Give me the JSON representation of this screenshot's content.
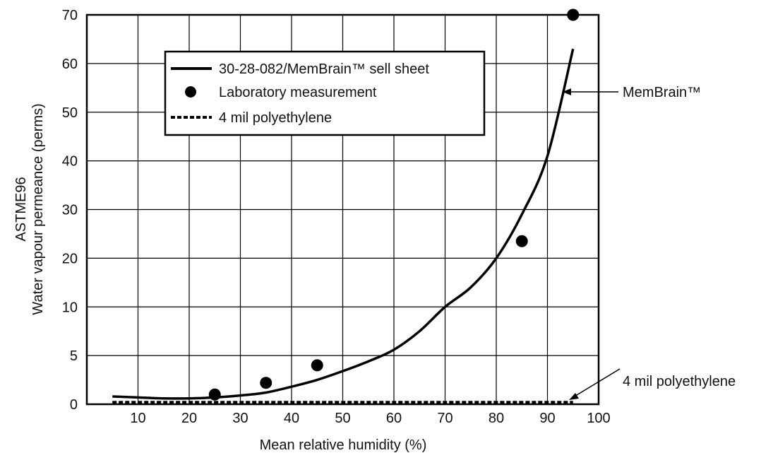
{
  "chart_data": {
    "type": "line",
    "title": "",
    "xlabel": "Mean relative humidity (%)",
    "ylabel_lines": [
      "ASTME96",
      "Water vapour permeance (perms)"
    ],
    "xlim": [
      0,
      100
    ],
    "x_ticks": [
      10,
      20,
      30,
      40,
      50,
      60,
      70,
      80,
      90,
      100
    ],
    "y_ticks": [
      "0",
      "5",
      "10",
      "20",
      "30",
      "40",
      "50",
      "60",
      "70"
    ],
    "y_scale_note_values": [
      0,
      5,
      10,
      20,
      30,
      40,
      50,
      60,
      70
    ],
    "grid": true,
    "legend_position": "top-center",
    "series": [
      {
        "name": "30-28-082/MemBrain™ sell sheet",
        "style": "solid",
        "x": [
          5,
          10,
          15,
          20,
          25,
          30,
          35,
          40,
          45,
          50,
          55,
          60,
          65,
          70,
          75,
          80,
          85,
          90,
          95
        ],
        "y": [
          0.8,
          0.7,
          0.6,
          0.6,
          0.7,
          0.9,
          1.2,
          1.8,
          2.5,
          3.4,
          4.4,
          5.6,
          7.5,
          10,
          14,
          20,
          29,
          41,
          63
        ]
      },
      {
        "name": "Laboratory measurement",
        "style": "points",
        "x": [
          25,
          35,
          45,
          85,
          95
        ],
        "y": [
          1.0,
          2.2,
          4.0,
          23.5,
          70
        ]
      },
      {
        "name": "4 mil polyethylene",
        "style": "dashed",
        "x": [
          5,
          95
        ],
        "y": [
          0.2,
          0.2
        ]
      }
    ],
    "annotations": [
      {
        "text": "MemBrain™",
        "points_to": {
          "x": 93.5,
          "y": 54
        }
      },
      {
        "text": "4 mil polyethylene",
        "points_to": {
          "x": 93,
          "y": 0.4
        }
      }
    ]
  }
}
